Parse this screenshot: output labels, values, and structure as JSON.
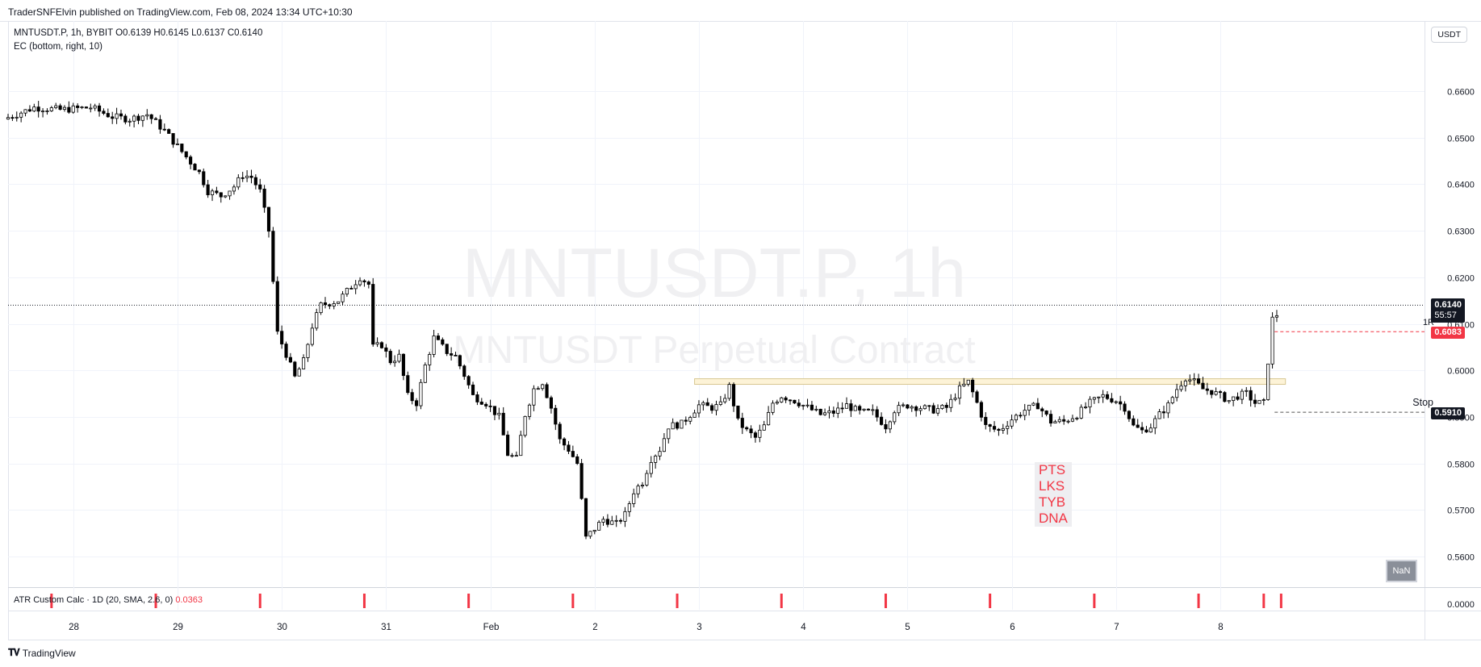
{
  "header": {
    "publish_text": "TraderSNFElvin published on TradingView.com, Feb 08, 2024 13:34 UTC+10:30"
  },
  "legend": {
    "symbol_line": "MNTUSDT.P, 1h, BYBIT  O0.6139  H0.6145  L0.6137  C0.6140",
    "indicator_line": "EC (bottom, right, 10)"
  },
  "currency_button": "USDT",
  "watermark": {
    "title": "MNTUSDT.P, 1h",
    "subtitle": "MNTUSDT Perpetual Contract"
  },
  "price_tags": {
    "last_price": "0.6140",
    "countdown": "55:57",
    "r1_price": "0.6083",
    "r1_label": "1R",
    "stop_price": "0.5910",
    "stop_label": "Stop"
  },
  "annotation": [
    "PTS",
    "LKS",
    "TYB",
    "DNA"
  ],
  "nan_badge": "NaN",
  "atr": {
    "legend": "ATR Custom Calc · 1D (20, SMA, 2.6, 0)",
    "value": "0.0363",
    "axis_label": "0.0000"
  },
  "brand": "TradingView",
  "colors": {
    "up_candle": "#ffffff",
    "down_candle": "#000000",
    "accent_red": "#f23645",
    "zone_fill": "#fdf3d7",
    "zone_border": "#d8c892"
  },
  "chart_data": {
    "type": "candlestick",
    "symbol": "MNTUSDT.P",
    "timeframe": "1h",
    "exchange": "BYBIT",
    "y_ticks": [
      "0.6600",
      "0.6500",
      "0.6400",
      "0.6300",
      "0.6200",
      "0.6100",
      "0.6000",
      "0.5900",
      "0.5800",
      "0.5700",
      "0.5600"
    ],
    "ylim": [
      0.554,
      0.67
    ],
    "x_ticks": [
      "28",
      "29",
      "30",
      "31",
      "Feb",
      "2",
      "3",
      "4",
      "5",
      "6",
      "7",
      "8"
    ],
    "x_tick_hours": [
      0,
      24,
      48,
      72,
      96,
      120,
      144,
      168,
      192,
      216,
      240,
      264
    ],
    "x_range_hours": [
      -15,
      311
    ],
    "last_bar_hour": 277,
    "last_price": 0.614,
    "r1_level": 0.6083,
    "stop_level": 0.591,
    "resistance_zone": {
      "from_hour": 143,
      "to_hour": 279,
      "low": 0.597,
      "high": 0.5982
    },
    "atr_markers_hours": [
      -5,
      19,
      43,
      67,
      91,
      115,
      139,
      163,
      187,
      211,
      235,
      259,
      274,
      278
    ],
    "price_path": [
      [
        -15,
        0.654
      ],
      [
        -8,
        0.6565
      ],
      [
        -2,
        0.656
      ],
      [
        5,
        0.6565
      ],
      [
        10,
        0.6545
      ],
      [
        14,
        0.654
      ],
      [
        18,
        0.655
      ],
      [
        22,
        0.6515
      ],
      [
        26,
        0.647
      ],
      [
        30,
        0.6425
      ],
      [
        32,
        0.6385
      ],
      [
        35,
        0.6375
      ],
      [
        38,
        0.6395
      ],
      [
        40,
        0.642
      ],
      [
        42,
        0.6415
      ],
      [
        44,
        0.6385
      ],
      [
        46,
        0.63
      ],
      [
        48,
        0.608
      ],
      [
        50,
        0.6035
      ],
      [
        52,
        0.5985
      ],
      [
        54,
        0.602
      ],
      [
        56,
        0.6095
      ],
      [
        58,
        0.614
      ],
      [
        62,
        0.615
      ],
      [
        65,
        0.618
      ],
      [
        67,
        0.62
      ],
      [
        69,
        0.6185
      ],
      [
        70,
        0.605
      ],
      [
        72,
        0.6055
      ],
      [
        74,
        0.602
      ],
      [
        76,
        0.603
      ],
      [
        78,
        0.5945
      ],
      [
        80,
        0.593
      ],
      [
        82,
        0.601
      ],
      [
        84,
        0.607
      ],
      [
        87,
        0.604
      ],
      [
        89,
        0.603
      ],
      [
        91,
        0.599
      ],
      [
        93,
        0.5945
      ],
      [
        96,
        0.593
      ],
      [
        99,
        0.59
      ],
      [
        101,
        0.582
      ],
      [
        103,
        0.581
      ],
      [
        105,
        0.5905
      ],
      [
        107,
        0.596
      ],
      [
        109,
        0.5975
      ],
      [
        111,
        0.592
      ],
      [
        113,
        0.585
      ],
      [
        115,
        0.583
      ],
      [
        117,
        0.58
      ],
      [
        119,
        0.564
      ],
      [
        121,
        0.566
      ],
      [
        123,
        0.568
      ],
      [
        126,
        0.567
      ],
      [
        128,
        0.569
      ],
      [
        130,
        0.574
      ],
      [
        132,
        0.576
      ],
      [
        134,
        0.581
      ],
      [
        136,
        0.583
      ],
      [
        138,
        0.588
      ],
      [
        141,
        0.5885
      ],
      [
        143,
        0.5905
      ],
      [
        145,
        0.5925
      ],
      [
        148,
        0.592
      ],
      [
        150,
        0.5925
      ],
      [
        152,
        0.5965
      ],
      [
        154,
        0.589
      ],
      [
        156,
        0.587
      ],
      [
        158,
        0.5855
      ],
      [
        160,
        0.588
      ],
      [
        162,
        0.593
      ],
      [
        164,
        0.5945
      ],
      [
        167,
        0.5935
      ],
      [
        170,
        0.592
      ],
      [
        173,
        0.5905
      ],
      [
        176,
        0.591
      ],
      [
        179,
        0.5925
      ],
      [
        182,
        0.591
      ],
      [
        185,
        0.591
      ],
      [
        188,
        0.588
      ],
      [
        190,
        0.5915
      ],
      [
        193,
        0.5925
      ],
      [
        196,
        0.592
      ],
      [
        199,
        0.5915
      ],
      [
        202,
        0.592
      ],
      [
        205,
        0.596
      ],
      [
        207,
        0.5975
      ],
      [
        209,
        0.593
      ],
      [
        211,
        0.588
      ],
      [
        214,
        0.587
      ],
      [
        217,
        0.5895
      ],
      [
        220,
        0.5915
      ],
      [
        223,
        0.5925
      ],
      [
        226,
        0.589
      ],
      [
        229,
        0.589
      ],
      [
        232,
        0.5905
      ],
      [
        235,
        0.593
      ],
      [
        238,
        0.5945
      ],
      [
        241,
        0.5935
      ],
      [
        243,
        0.592
      ],
      [
        245,
        0.588
      ],
      [
        247,
        0.587
      ],
      [
        249,
        0.588
      ],
      [
        251,
        0.5905
      ],
      [
        253,
        0.5925
      ],
      [
        255,
        0.596
      ],
      [
        257,
        0.5985
      ],
      [
        259,
        0.5975
      ],
      [
        261,
        0.596
      ],
      [
        263,
        0.5955
      ],
      [
        265,
        0.5945
      ],
      [
        267,
        0.5935
      ],
      [
        269,
        0.5945
      ],
      [
        271,
        0.595
      ],
      [
        273,
        0.593
      ],
      [
        275,
        0.593
      ],
      [
        276,
        0.602
      ],
      [
        277,
        0.611
      ],
      [
        278,
        0.612
      ],
      [
        279,
        0.615
      ],
      [
        280,
        0.6135
      ],
      [
        281,
        0.6105
      ],
      [
        282,
        0.6095
      ],
      [
        283,
        0.6105
      ],
      [
        284,
        0.612
      ],
      [
        285,
        0.613
      ],
      [
        286,
        0.614
      ]
    ]
  }
}
